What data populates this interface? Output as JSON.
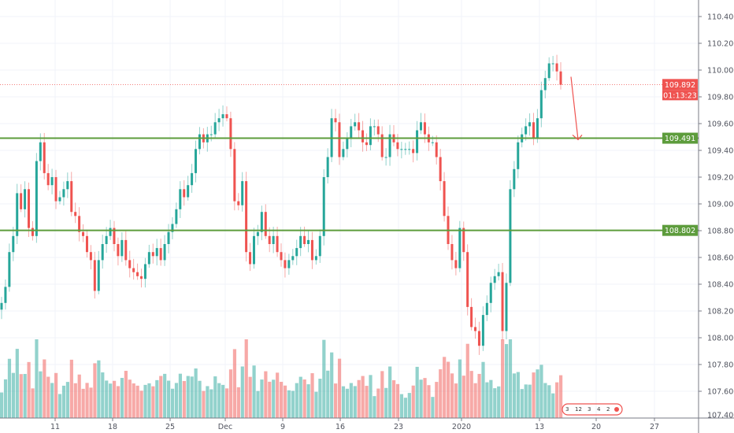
{
  "chart_data": {
    "type": "candlestick",
    "title": "",
    "ylim": [
      107.4,
      110.5
    ],
    "grid": true,
    "y_ticks": [
      "110.400",
      "110.200",
      "110.000",
      "109.800",
      "109.600",
      "109.400",
      "109.200",
      "109.000",
      "108.800",
      "108.600",
      "108.400",
      "108.200",
      "108.000",
      "107.800",
      "107.600",
      "107.400"
    ],
    "y_tick_values": [
      110.4,
      110.2,
      110.0,
      109.8,
      109.6,
      109.4,
      109.2,
      109.0,
      108.8,
      108.6,
      108.4,
      108.2,
      108.0,
      107.8,
      107.6,
      107.4
    ],
    "x_ticks": [
      "11",
      "18",
      "25",
      "Dec",
      "9",
      "16",
      "23",
      "2020",
      "13",
      "20",
      "27"
    ],
    "closes": [
      108.26,
      108.38,
      108.64,
      108.76,
      109.08,
      108.96,
      109.11,
      108.82,
      108.76,
      109.32,
      109.46,
      109.23,
      109.14,
      109.2,
      109.02,
      109.05,
      109.11,
      109.17,
      108.94,
      108.91,
      108.79,
      108.76,
      108.64,
      108.58,
      108.35,
      108.58,
      108.7,
      108.76,
      108.82,
      108.7,
      108.61,
      108.73,
      108.58,
      108.52,
      108.49,
      108.46,
      108.44,
      108.55,
      108.64,
      108.61,
      108.67,
      108.58,
      108.7,
      108.79,
      108.85,
      108.96,
      109.11,
      109.05,
      109.14,
      109.23,
      109.41,
      109.52,
      109.46,
      109.52,
      109.52,
      109.61,
      109.64,
      109.67,
      109.64,
      109.41,
      109.02,
      108.99,
      109.17,
      108.64,
      108.55,
      108.76,
      108.79,
      108.94,
      108.76,
      108.7,
      108.76,
      108.64,
      108.58,
      108.52,
      108.58,
      108.61,
      108.67,
      108.76,
      108.7,
      108.73,
      108.58,
      108.61,
      108.76,
      109.2,
      109.35,
      109.64,
      109.61,
      109.35,
      109.41,
      109.49,
      109.58,
      109.61,
      109.55,
      109.46,
      109.44,
      109.58,
      109.58,
      109.52,
      109.35,
      109.35,
      109.52,
      109.46,
      109.41,
      109.41,
      109.41,
      109.41,
      109.38,
      109.55,
      109.61,
      109.52,
      109.46,
      109.46,
      109.35,
      109.17,
      108.91,
      108.7,
      108.58,
      108.52,
      108.82,
      108.64,
      108.23,
      108.08,
      108.05,
      107.94,
      108.17,
      108.26,
      108.41,
      108.46,
      108.49,
      108.05,
      108.41,
      109.11,
      109.26,
      109.46,
      109.52,
      109.58,
      109.61,
      109.49,
      109.64,
      109.85,
      109.94,
      110.05,
      110.05,
      109.99,
      109.89
    ],
    "horizontal_levels": [
      {
        "label": "109.491",
        "value": 109.491,
        "color": "#5d9c3c"
      },
      {
        "label": "108.802",
        "value": 108.802,
        "color": "#5d9c3c"
      }
    ],
    "current_price": {
      "label": "109.892",
      "value": 109.892,
      "countdown": "01:13:23",
      "color": "#ef5350"
    },
    "arrow": {
      "from": 109.95,
      "to": 109.48,
      "color": "#ef5350"
    },
    "events": [
      "3",
      "12",
      "3",
      "4",
      "2"
    ],
    "colors": {
      "up": "#26a69a",
      "down": "#ef5350",
      "grid": "#f0f3fa",
      "axis": "#787b86"
    }
  }
}
